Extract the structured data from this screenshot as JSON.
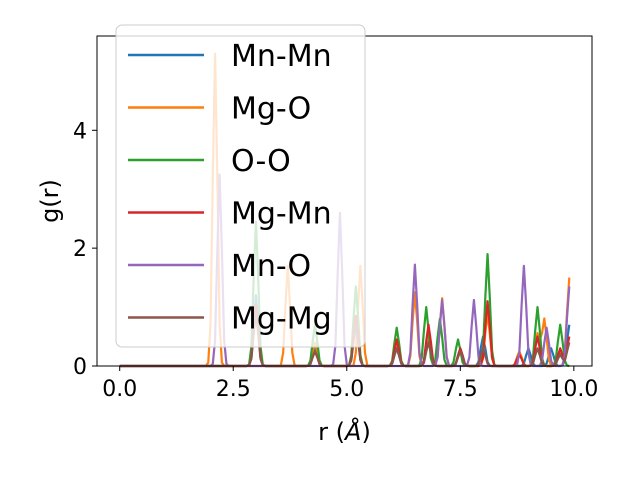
{
  "chart_data": {
    "type": "line",
    "xlabel_prefix": "r (",
    "xlabel_unit": "Å",
    "xlabel_suffix": ")",
    "ylabel": "g(r)",
    "xlim": [
      -0.5,
      10.4
    ],
    "ylim": [
      0,
      5.6
    ],
    "xticks": [
      0.0,
      2.5,
      5.0,
      7.5,
      10.0
    ],
    "xtick_labels": [
      "0.0",
      "2.5",
      "5.0",
      "7.5",
      "10.0"
    ],
    "yticks": [
      0,
      2,
      4
    ],
    "ytick_labels": [
      "0",
      "2",
      "4"
    ],
    "grid": false,
    "legend_position": "upper-left",
    "series": [
      {
        "name": "Mn-Mn",
        "color": "#1f77b4",
        "peaks": [
          [
            3.0,
            1.2
          ],
          [
            4.3,
            0.3
          ],
          [
            5.2,
            0.8
          ],
          [
            6.1,
            0.3
          ],
          [
            6.8,
            0.6
          ],
          [
            7.5,
            0.3
          ],
          [
            8.0,
            0.5
          ],
          [
            9.0,
            0.3
          ],
          [
            9.5,
            0.3
          ],
          [
            9.9,
            0.7
          ]
        ]
      },
      {
        "name": "Mg-O",
        "color": "#ff7f0e",
        "peaks": [
          [
            2.1,
            5.3
          ],
          [
            3.7,
            1.7
          ],
          [
            4.3,
            0.4
          ],
          [
            5.3,
            1.7
          ],
          [
            6.1,
            0.4
          ],
          [
            6.5,
            1.25
          ],
          [
            6.8,
            0.5
          ],
          [
            7.1,
            1.15
          ],
          [
            7.5,
            0.25
          ],
          [
            8.1,
            0.9
          ],
          [
            8.8,
            0.25
          ],
          [
            9.2,
            0.55
          ],
          [
            9.35,
            0.8
          ],
          [
            9.7,
            0.25
          ],
          [
            9.9,
            1.5
          ]
        ]
      },
      {
        "name": "O-O",
        "color": "#2ca02c",
        "peaks": [
          [
            3.0,
            2.45
          ],
          [
            4.3,
            0.7
          ],
          [
            5.2,
            1.35
          ],
          [
            6.1,
            0.65
          ],
          [
            6.75,
            1.0
          ],
          [
            7.05,
            0.8
          ],
          [
            7.45,
            0.45
          ],
          [
            8.1,
            1.9
          ],
          [
            9.2,
            1.0
          ],
          [
            9.7,
            0.7
          ]
        ]
      },
      {
        "name": "Mg-Mn",
        "color": "#d62728",
        "peaks": [
          [
            3.0,
            1.05
          ],
          [
            4.3,
            0.25
          ],
          [
            5.2,
            0.85
          ],
          [
            6.1,
            0.45
          ],
          [
            6.8,
            0.7
          ],
          [
            7.5,
            0.3
          ],
          [
            8.1,
            1.1
          ],
          [
            8.8,
            0.2
          ],
          [
            9.2,
            0.5
          ],
          [
            9.7,
            0.3
          ],
          [
            9.9,
            0.5
          ]
        ]
      },
      {
        "name": "Mn-O",
        "color": "#9467bd",
        "peaks": [
          [
            2.2,
            3.25
          ],
          [
            4.85,
            2.6
          ],
          [
            6.5,
            1.72
          ],
          [
            7.1,
            1.12
          ],
          [
            7.8,
            1.12
          ],
          [
            8.9,
            1.7
          ],
          [
            9.4,
            0.65
          ],
          [
            9.9,
            1.35
          ]
        ]
      },
      {
        "name": "Mg-Mg",
        "color": "#8c564b",
        "peaks": [
          [
            3.0,
            0.9
          ],
          [
            4.3,
            0.25
          ],
          [
            5.2,
            0.7
          ],
          [
            6.1,
            0.3
          ],
          [
            6.8,
            0.4
          ],
          [
            7.5,
            0.25
          ],
          [
            8.0,
            0.3
          ],
          [
            9.2,
            0.3
          ],
          [
            9.7,
            0.2
          ],
          [
            9.9,
            0.4
          ]
        ]
      }
    ]
  }
}
